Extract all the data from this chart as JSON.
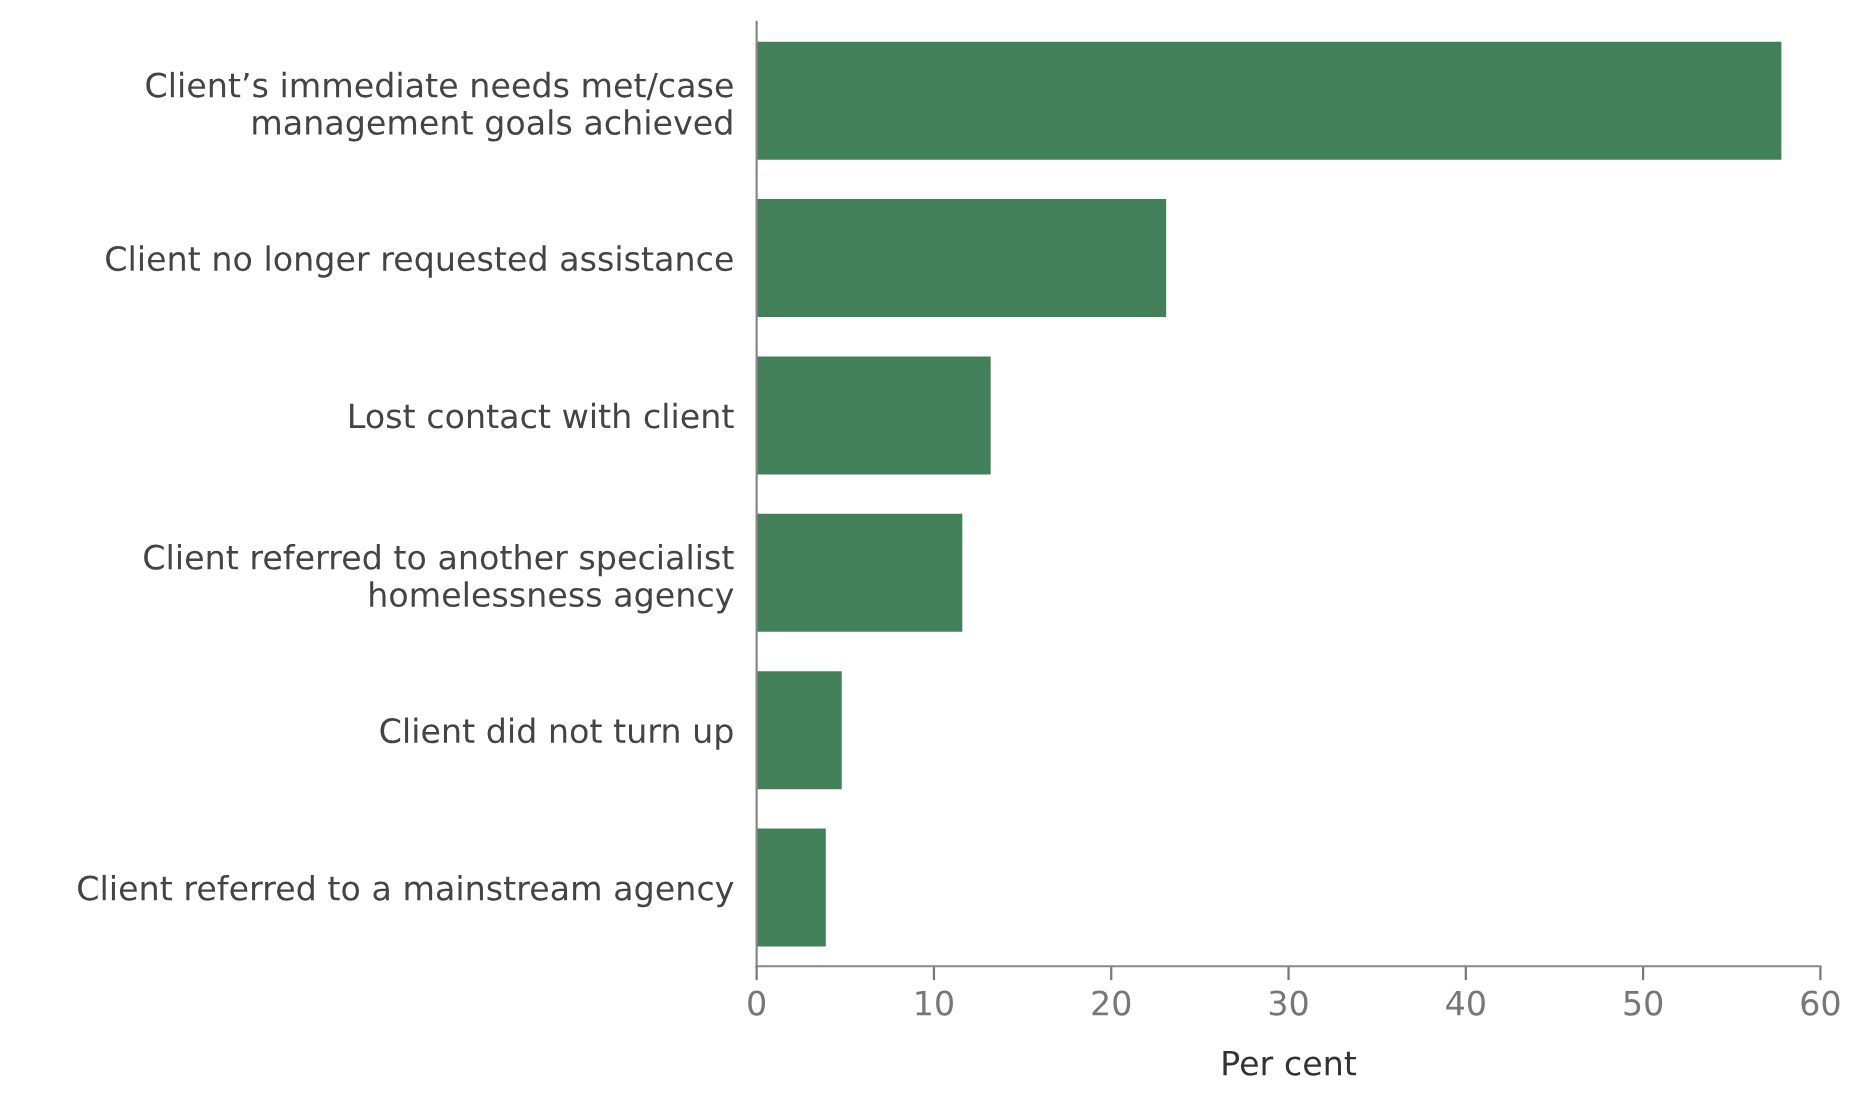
{
  "chart_data": {
    "type": "bar",
    "orientation": "horizontal",
    "xlabel": "Per cent",
    "categories": [
      "Client’s immediate needs met/case\nmanagement goals achieved",
      "Client no longer requested assistance",
      "Lost contact with client",
      "Client referred to another specialist\nhomelessness agency",
      "Client did not turn up",
      "Client referred to a mainstream agency"
    ],
    "values": [
      57.8,
      23.1,
      13.2,
      11.6,
      4.8,
      3.9
    ],
    "color": "#42805a",
    "xlim": [
      0,
      60
    ],
    "xticks": [
      0,
      10,
      20,
      30,
      40,
      50,
      60
    ],
    "grid": false
  }
}
